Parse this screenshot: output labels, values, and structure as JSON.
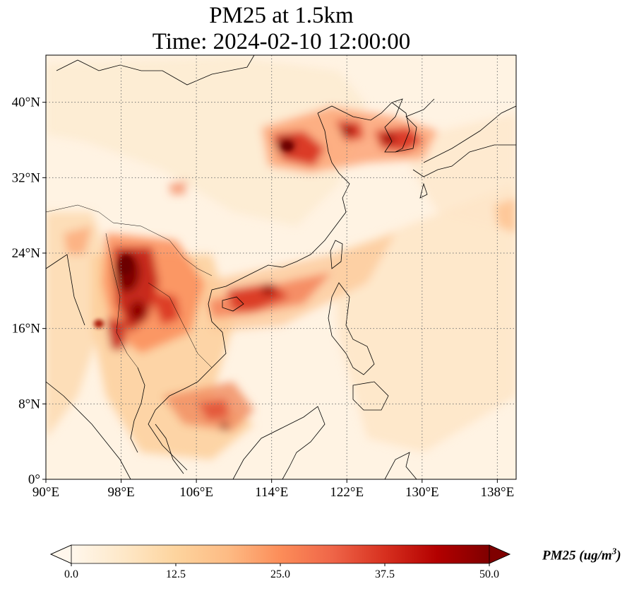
{
  "title": {
    "line1": "PM25 at 1.5km",
    "line2": "Time: 2024-02-10 12:00:00"
  },
  "map": {
    "type": "filled-contour map",
    "variable": "PM25",
    "level": "1.5km",
    "extent": {
      "lon_min": 90,
      "lon_max": 140,
      "lat_min": 0,
      "lat_max": 45
    },
    "gridlines": "dotted",
    "lon_ticks": [
      {
        "value": 90,
        "label": "90°E"
      },
      {
        "value": 98,
        "label": "98°E"
      },
      {
        "value": 106,
        "label": "106°E"
      },
      {
        "value": 114,
        "label": "114°E"
      },
      {
        "value": 122,
        "label": "122°E"
      },
      {
        "value": 130,
        "label": "130°E"
      },
      {
        "value": 138,
        "label": "138°E"
      }
    ],
    "lat_ticks": [
      {
        "value": 0,
        "label": "0°"
      },
      {
        "value": 8,
        "label": "8°N"
      },
      {
        "value": 16,
        "label": "16°N"
      },
      {
        "value": 24,
        "label": "24°N"
      },
      {
        "value": 32,
        "label": "32°N"
      },
      {
        "value": 40,
        "label": "40°N"
      }
    ],
    "colormap": "OrRd",
    "hotspots": [
      {
        "region": "North China Plain",
        "lon": 116.5,
        "lat": 35.5,
        "level": "high"
      },
      {
        "region": "Bohai / Liaoning",
        "lon": 121.5,
        "lat": 37.5,
        "level": "high"
      },
      {
        "region": "Yellow Sea / Korea",
        "lon": 126.5,
        "lat": 36.5,
        "level": "high"
      },
      {
        "region": "Myanmar / Yunnan",
        "lon": 98.5,
        "lat": 21.0,
        "level": "very high"
      },
      {
        "region": "Northern Thailand / Laos",
        "lon": 102.0,
        "lat": 18.5,
        "level": "high"
      },
      {
        "region": "South China Sea plume",
        "lon": 113.0,
        "lat": 19.0,
        "level": "high"
      },
      {
        "region": "Gulf of Thailand / Borneo",
        "lon": 107.5,
        "lat": 7.0,
        "level": "moderate"
      }
    ]
  },
  "colorbar": {
    "min": 0.0,
    "max": 50.0,
    "extend": "both",
    "ticks": [
      "0.0",
      "12.5",
      "25.0",
      "37.5",
      "50.0"
    ],
    "label_main": "PM25 (ug/m",
    "label_sup": "3",
    "label_close": ")",
    "colors": [
      "#fff7ec",
      "#fee8c8",
      "#fdd49e",
      "#fdbb84",
      "#fc8d59",
      "#ef6548",
      "#d7301f",
      "#b30000",
      "#7f0000"
    ]
  }
}
